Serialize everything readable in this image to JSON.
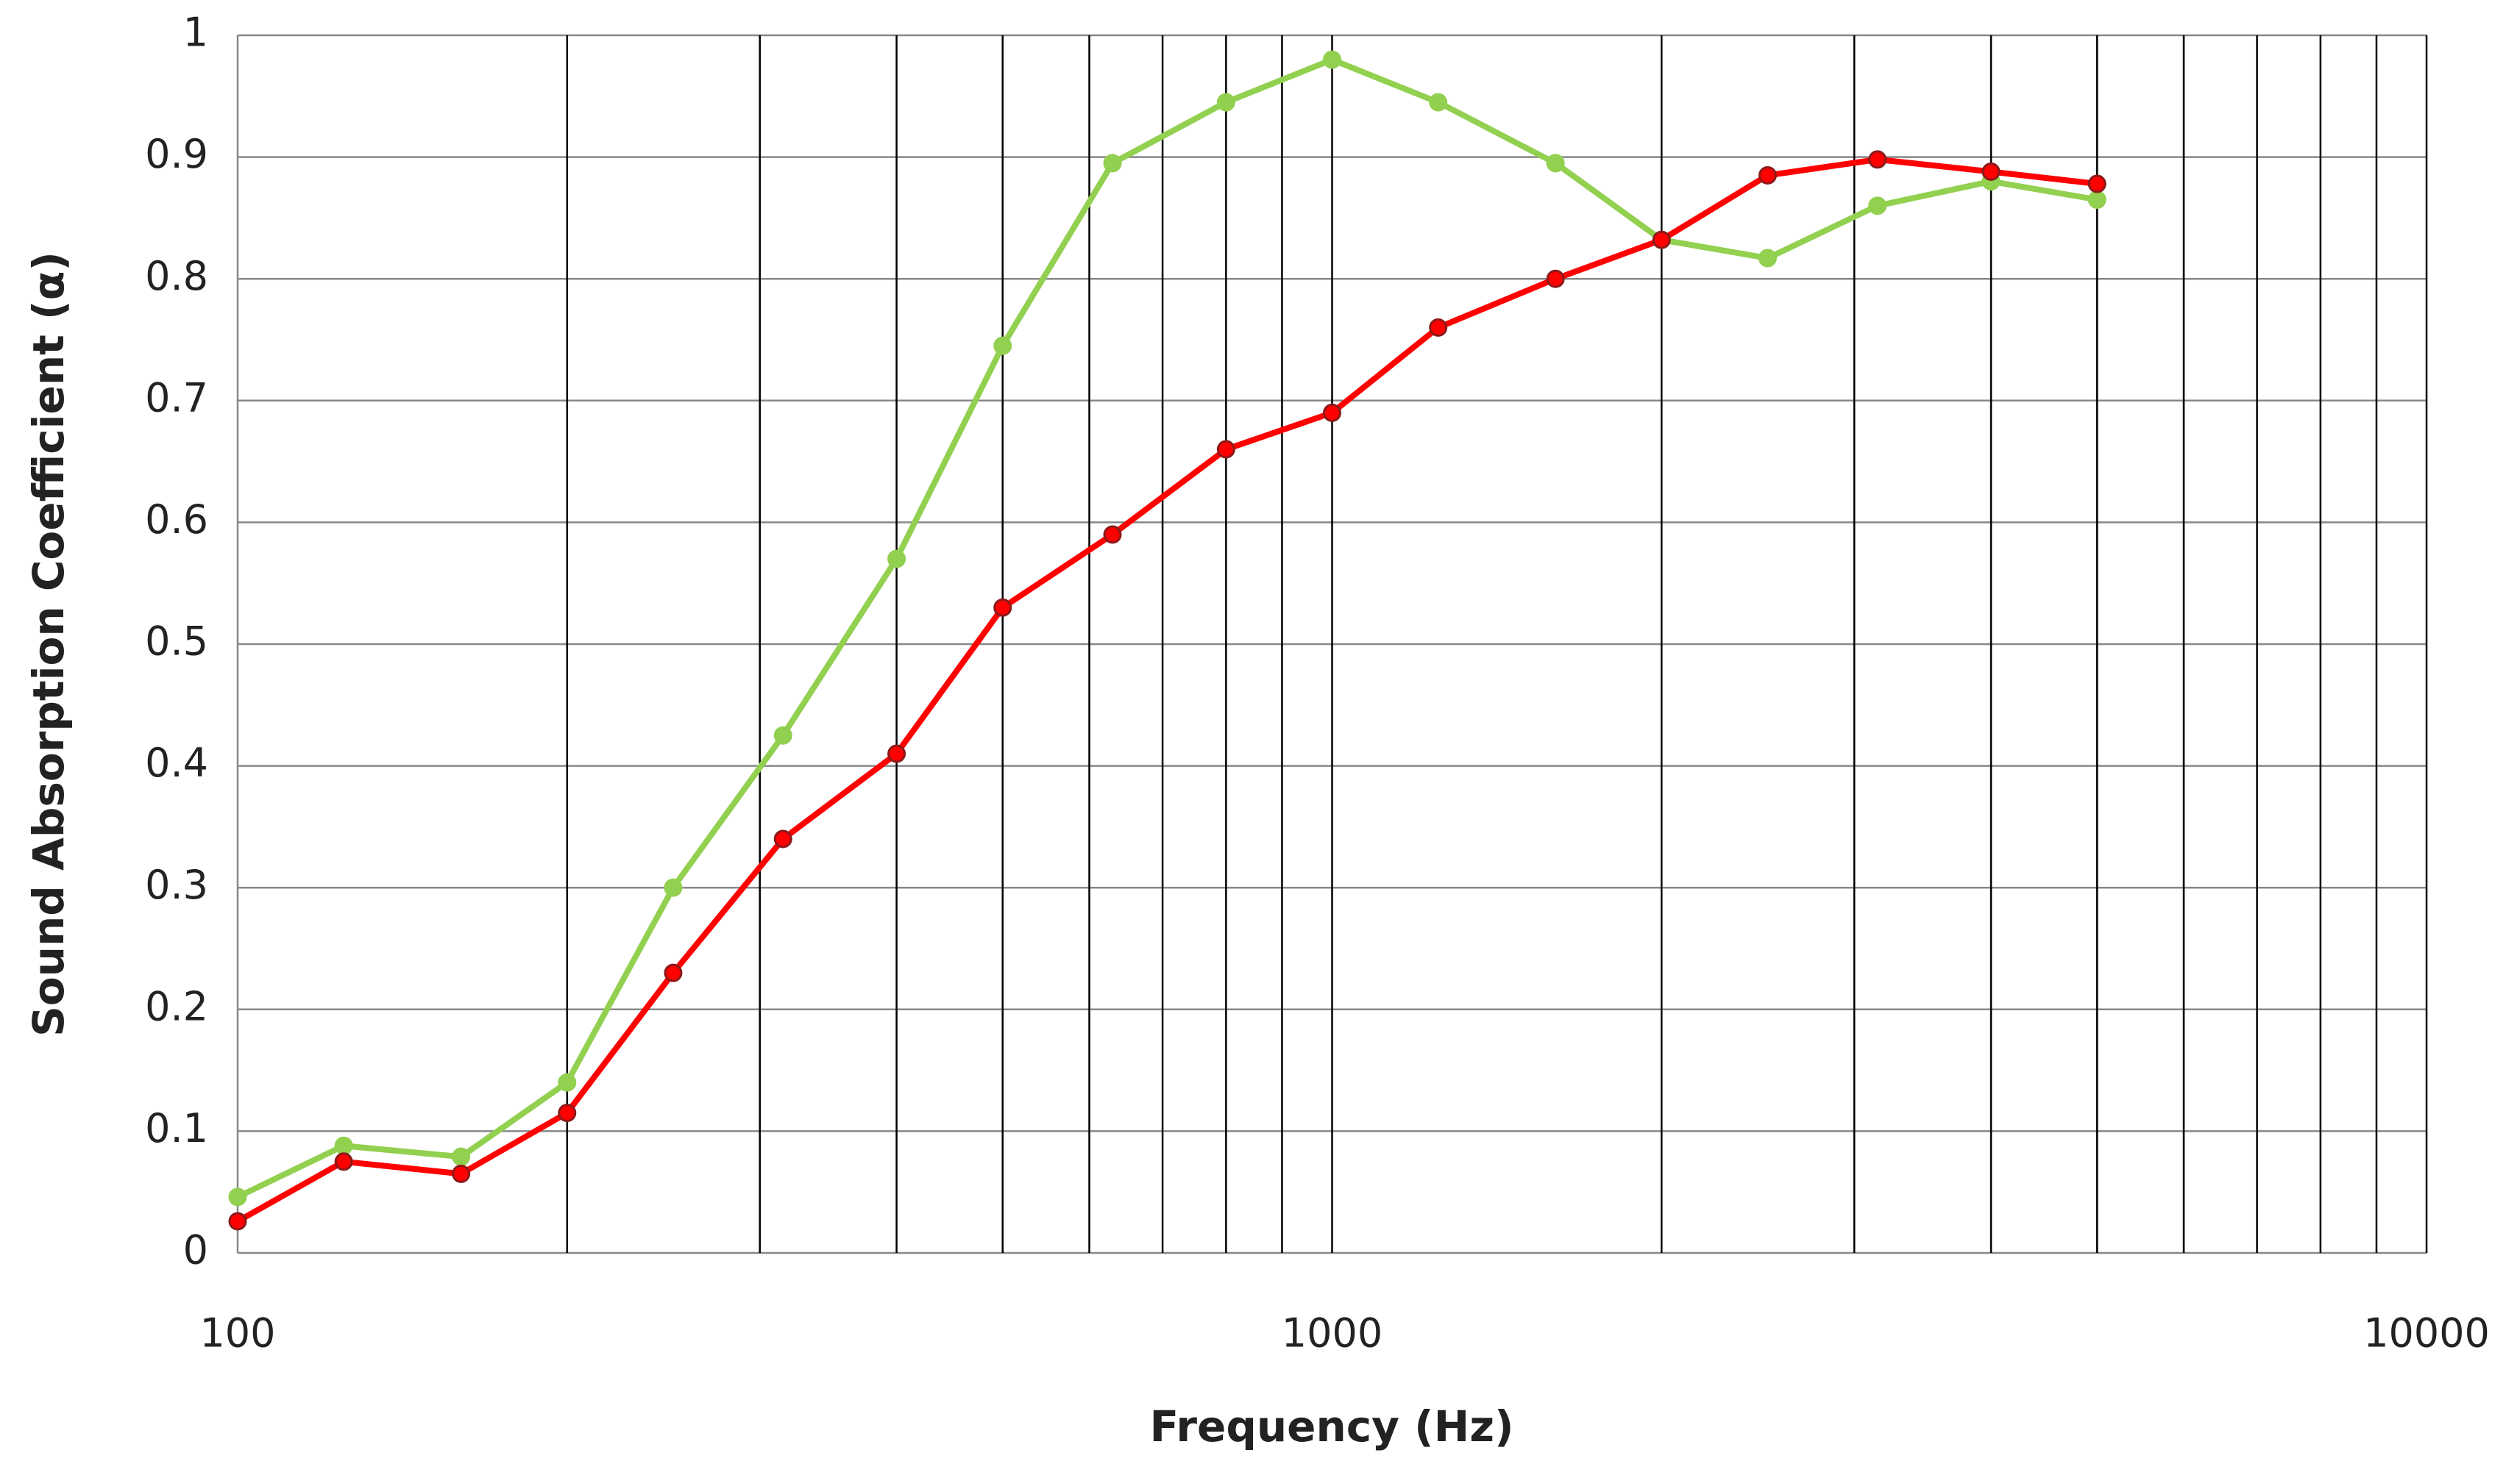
{
  "chart_data": {
    "type": "line",
    "x_label": "Frequency (Hz)",
    "y_label": "Sound Absorption Coefficient (α)",
    "x": [
      100,
      125,
      160,
      200,
      250,
      315,
      400,
      500,
      630,
      800,
      1000,
      1250,
      1600,
      2000,
      2500,
      3150,
      4000,
      5000
    ],
    "series": [
      {
        "color": "#92d050",
        "marker_edge": "#92d050",
        "values": [
          0.046,
          0.088,
          0.079,
          0.14,
          0.3,
          0.425,
          0.57,
          0.745,
          0.895,
          0.945,
          0.98,
          0.945,
          0.895,
          0.832,
          0.817,
          0.86,
          0.88,
          0.865
        ]
      },
      {
        "color": "#ff0000",
        "marker_edge": "#8b1a1a",
        "values": [
          0.026,
          0.075,
          0.065,
          0.115,
          0.23,
          0.34,
          0.41,
          0.53,
          0.59,
          0.66,
          0.69,
          0.76,
          0.8,
          0.832,
          0.885,
          0.898,
          0.888,
          0.878
        ]
      }
    ],
    "xscale": "log",
    "xlim": [
      100,
      10000
    ],
    "xticks": [
      100,
      1000,
      10000
    ],
    "x_minor_ticks": [
      200,
      300,
      400,
      500,
      600,
      700,
      800,
      900,
      2000,
      3000,
      4000,
      5000,
      6000,
      7000,
      8000,
      9000
    ],
    "ylim": [
      0,
      1
    ],
    "yticks": [
      0,
      0.1,
      0.2,
      0.3,
      0.4,
      0.5,
      0.6,
      0.7,
      0.8,
      0.9,
      1
    ],
    "grid": true
  }
}
